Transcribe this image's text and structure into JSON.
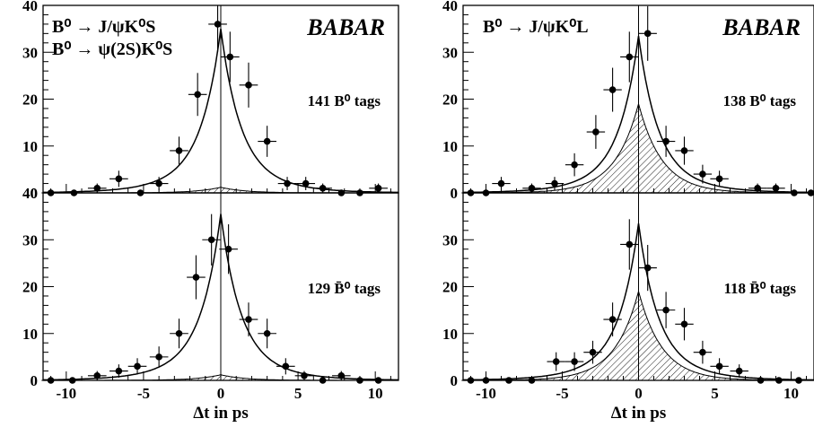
{
  "chart_data": [
    {
      "type": "scatter",
      "panel": "top-left",
      "title_lines": [
        "B⁰ → J/ψK⁰S",
        "B⁰ → ψ(2S)K⁰S"
      ],
      "brand": "BABAR",
      "tag_label": "141 B⁰ tags",
      "ylim": [
        0,
        40
      ],
      "yticks": [
        0,
        10,
        20,
        30,
        40
      ],
      "xlim": [
        -11.5,
        11.5
      ],
      "show_x_tick_labels": false,
      "points": [
        {
          "x": -11,
          "y": 0
        },
        {
          "x": -9.5,
          "y": 0
        },
        {
          "x": -8,
          "y": 1
        },
        {
          "x": -6.6,
          "y": 3
        },
        {
          "x": -5.2,
          "y": 0
        },
        {
          "x": -4,
          "y": 2
        },
        {
          "x": -2.7,
          "y": 9
        },
        {
          "x": -1.5,
          "y": 21
        },
        {
          "x": -0.2,
          "y": 36
        },
        {
          "x": 0.6,
          "y": 29
        },
        {
          "x": 1.8,
          "y": 23
        },
        {
          "x": 3,
          "y": 11
        },
        {
          "x": 4.3,
          "y": 2
        },
        {
          "x": 5.5,
          "y": 2
        },
        {
          "x": 6.6,
          "y": 1
        },
        {
          "x": 7.8,
          "y": 0
        },
        {
          "x": 9,
          "y": 0
        },
        {
          "x": 10.2,
          "y": 1
        }
      ],
      "fit_peak": 35,
      "background_peak": 1.2
    },
    {
      "type": "scatter",
      "panel": "top-right",
      "title_lines": [
        "B⁰ → J/ψK⁰L"
      ],
      "brand": "BABAR",
      "tag_label": "138 B⁰ tags",
      "ylim": [
        0,
        40
      ],
      "yticks": [
        0,
        10,
        20,
        30,
        40
      ],
      "xlim": [
        -11.5,
        11.5
      ],
      "show_x_tick_labels": false,
      "points": [
        {
          "x": -11,
          "y": 0
        },
        {
          "x": -10,
          "y": 0
        },
        {
          "x": -9,
          "y": 2
        },
        {
          "x": -7,
          "y": 1
        },
        {
          "x": -5.5,
          "y": 2
        },
        {
          "x": -4.2,
          "y": 6
        },
        {
          "x": -2.8,
          "y": 13
        },
        {
          "x": -1.7,
          "y": 22
        },
        {
          "x": -0.6,
          "y": 29
        },
        {
          "x": 0.6,
          "y": 34
        },
        {
          "x": 1.8,
          "y": 11
        },
        {
          "x": 3,
          "y": 9
        },
        {
          "x": 4.2,
          "y": 4
        },
        {
          "x": 5.3,
          "y": 3
        },
        {
          "x": 7.8,
          "y": 1
        },
        {
          "x": 9,
          "y": 1
        },
        {
          "x": 10.2,
          "y": 0
        },
        {
          "x": 11.3,
          "y": 0
        }
      ],
      "fit_peak": 33.5,
      "background_peak": 19
    },
    {
      "type": "scatter",
      "panel": "bottom-left",
      "tag_label": "129 B̄⁰ tags",
      "ylim": [
        0,
        40
      ],
      "yticks": [
        0,
        10,
        20,
        30,
        40
      ],
      "xlim": [
        -11.5,
        11.5
      ],
      "xlabel": "Δt in ps",
      "xticks": [
        -10,
        -5,
        0,
        5,
        10
      ],
      "xtick_labels": [
        "-10",
        "-5",
        "0",
        "5",
        "10"
      ],
      "show_x_tick_labels": true,
      "points": [
        {
          "x": -11,
          "y": 0
        },
        {
          "x": -9.6,
          "y": 0
        },
        {
          "x": -8,
          "y": 1
        },
        {
          "x": -6.6,
          "y": 2
        },
        {
          "x": -5.4,
          "y": 3
        },
        {
          "x": -4,
          "y": 5
        },
        {
          "x": -2.7,
          "y": 10
        },
        {
          "x": -1.6,
          "y": 22
        },
        {
          "x": -0.6,
          "y": 30
        },
        {
          "x": 0.5,
          "y": 28
        },
        {
          "x": 1.8,
          "y": 13
        },
        {
          "x": 3,
          "y": 10
        },
        {
          "x": 4.2,
          "y": 3
        },
        {
          "x": 5.4,
          "y": 1
        },
        {
          "x": 6.6,
          "y": 0
        },
        {
          "x": 7.8,
          "y": 1
        },
        {
          "x": 9,
          "y": 0
        },
        {
          "x": 10.2,
          "y": 0
        }
      ],
      "fit_peak": 35.5,
      "background_peak": 1.2
    },
    {
      "type": "scatter",
      "panel": "bottom-right",
      "tag_label": "118 B̄⁰ tags",
      "ylim": [
        0,
        40
      ],
      "yticks": [
        0,
        10,
        20,
        30
      ],
      "xlim": [
        -11.5,
        11.5
      ],
      "xlabel": "Δt in ps",
      "xticks": [
        -10,
        -5,
        0,
        5,
        10
      ],
      "xtick_labels": [
        "-10",
        "-5",
        "0",
        "5",
        "10"
      ],
      "show_x_tick_labels": true,
      "points": [
        {
          "x": -11,
          "y": 0
        },
        {
          "x": -10,
          "y": 0
        },
        {
          "x": -8.5,
          "y": 0
        },
        {
          "x": -7,
          "y": 0
        },
        {
          "x": -5.4,
          "y": 4
        },
        {
          "x": -4.2,
          "y": 4
        },
        {
          "x": -3,
          "y": 6
        },
        {
          "x": -1.7,
          "y": 13
        },
        {
          "x": -0.6,
          "y": 29
        },
        {
          "x": 0.6,
          "y": 24
        },
        {
          "x": 1.8,
          "y": 15
        },
        {
          "x": 3,
          "y": 12
        },
        {
          "x": 4.2,
          "y": 6
        },
        {
          "x": 5.3,
          "y": 3
        },
        {
          "x": 6.6,
          "y": 2
        },
        {
          "x": 8,
          "y": 0
        },
        {
          "x": 9.2,
          "y": 0
        },
        {
          "x": 10.5,
          "y": 0
        }
      ],
      "fit_peak": 33.5,
      "background_peak": 19
    }
  ]
}
